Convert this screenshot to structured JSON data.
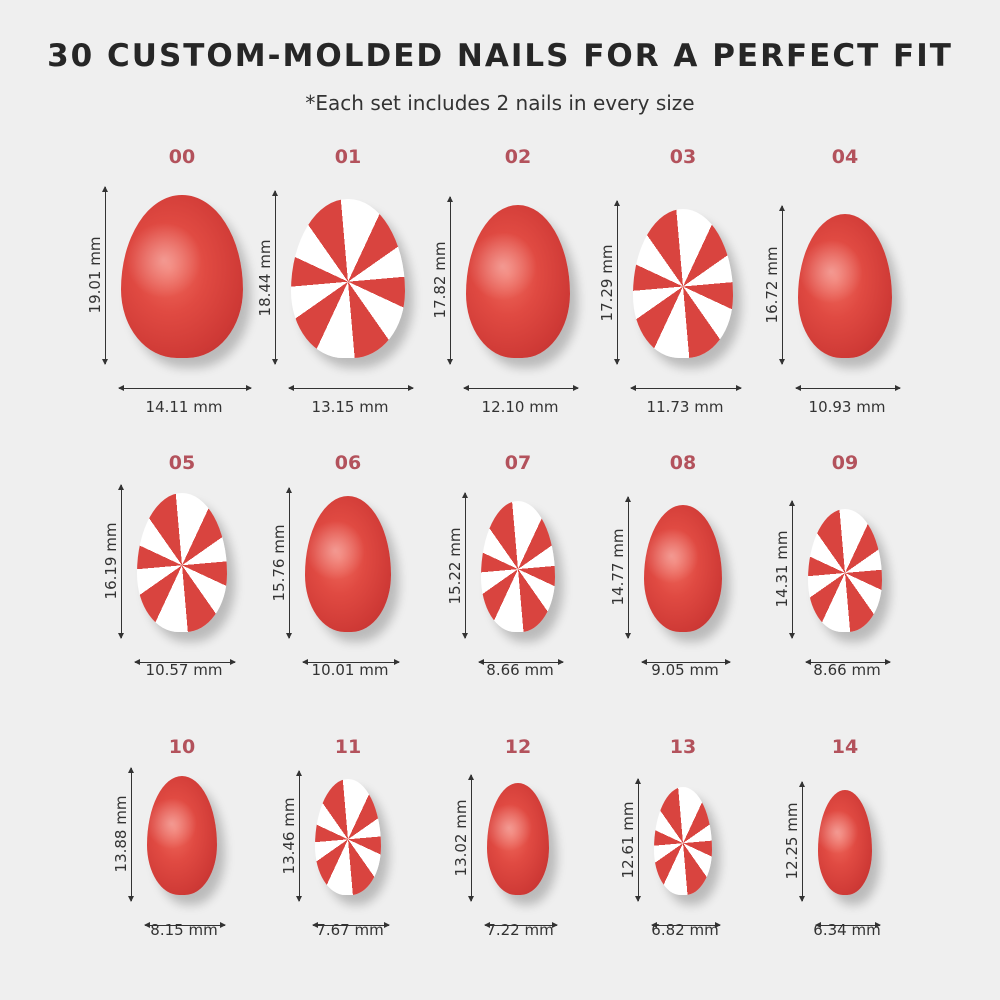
{
  "title": "30 CUSTOM-MOLDED NAILS FOR A PERFECT FIT",
  "subtitle": "*Each set includes 2 nails in every size",
  "colors": {
    "label": "#b3525c",
    "nail_red": "#d9443f",
    "background": "#efefef"
  },
  "nails": [
    {
      "size": "00",
      "height": "19.01 mm",
      "width": "14.11 mm",
      "h": 19.01,
      "w": 14.11,
      "pattern": "glitter"
    },
    {
      "size": "01",
      "height": "18.44 mm",
      "width": "13.15 mm",
      "h": 18.44,
      "w": 13.15,
      "pattern": "swirl"
    },
    {
      "size": "02",
      "height": "17.82 mm",
      "width": "12.10 mm",
      "h": 17.82,
      "w": 12.1,
      "pattern": "glitter"
    },
    {
      "size": "03",
      "height": "17.29 mm",
      "width": "11.73 mm",
      "h": 17.29,
      "w": 11.73,
      "pattern": "swirl"
    },
    {
      "size": "04",
      "height": "16.72 mm",
      "width": "10.93 mm",
      "h": 16.72,
      "w": 10.93,
      "pattern": "glitter"
    },
    {
      "size": "05",
      "height": "16.19 mm",
      "width": "10.57 mm",
      "h": 16.19,
      "w": 10.57,
      "pattern": "swirl"
    },
    {
      "size": "06",
      "height": "15.76 mm",
      "width": "10.01 mm",
      "h": 15.76,
      "w": 10.01,
      "pattern": "glitter"
    },
    {
      "size": "07",
      "height": "15.22 mm",
      "width": "8.66 mm",
      "h": 15.22,
      "w": 8.66,
      "pattern": "swirl"
    },
    {
      "size": "08",
      "height": "14.77 mm",
      "width": "9.05 mm",
      "h": 14.77,
      "w": 9.05,
      "pattern": "glitter"
    },
    {
      "size": "09",
      "height": "14.31 mm",
      "width": "8.66 mm",
      "h": 14.31,
      "w": 8.66,
      "pattern": "swirl"
    },
    {
      "size": "10",
      "height": "13.88 mm",
      "width": "8.15 mm",
      "h": 13.88,
      "w": 8.15,
      "pattern": "glitter"
    },
    {
      "size": "11",
      "height": "13.46 mm",
      "width": "7.67 mm",
      "h": 13.46,
      "w": 7.67,
      "pattern": "swirl"
    },
    {
      "size": "12",
      "height": "13.02 mm",
      "width": "7.22 mm",
      "h": 13.02,
      "w": 7.22,
      "pattern": "glitter"
    },
    {
      "size": "13",
      "height": "12.61 mm",
      "width": "6.82 mm",
      "h": 12.61,
      "w": 6.82,
      "pattern": "swirl"
    },
    {
      "size": "14",
      "height": "12.25 mm",
      "width": "6.34 mm",
      "h": 12.25,
      "w": 6.34,
      "pattern": "glitter"
    }
  ]
}
